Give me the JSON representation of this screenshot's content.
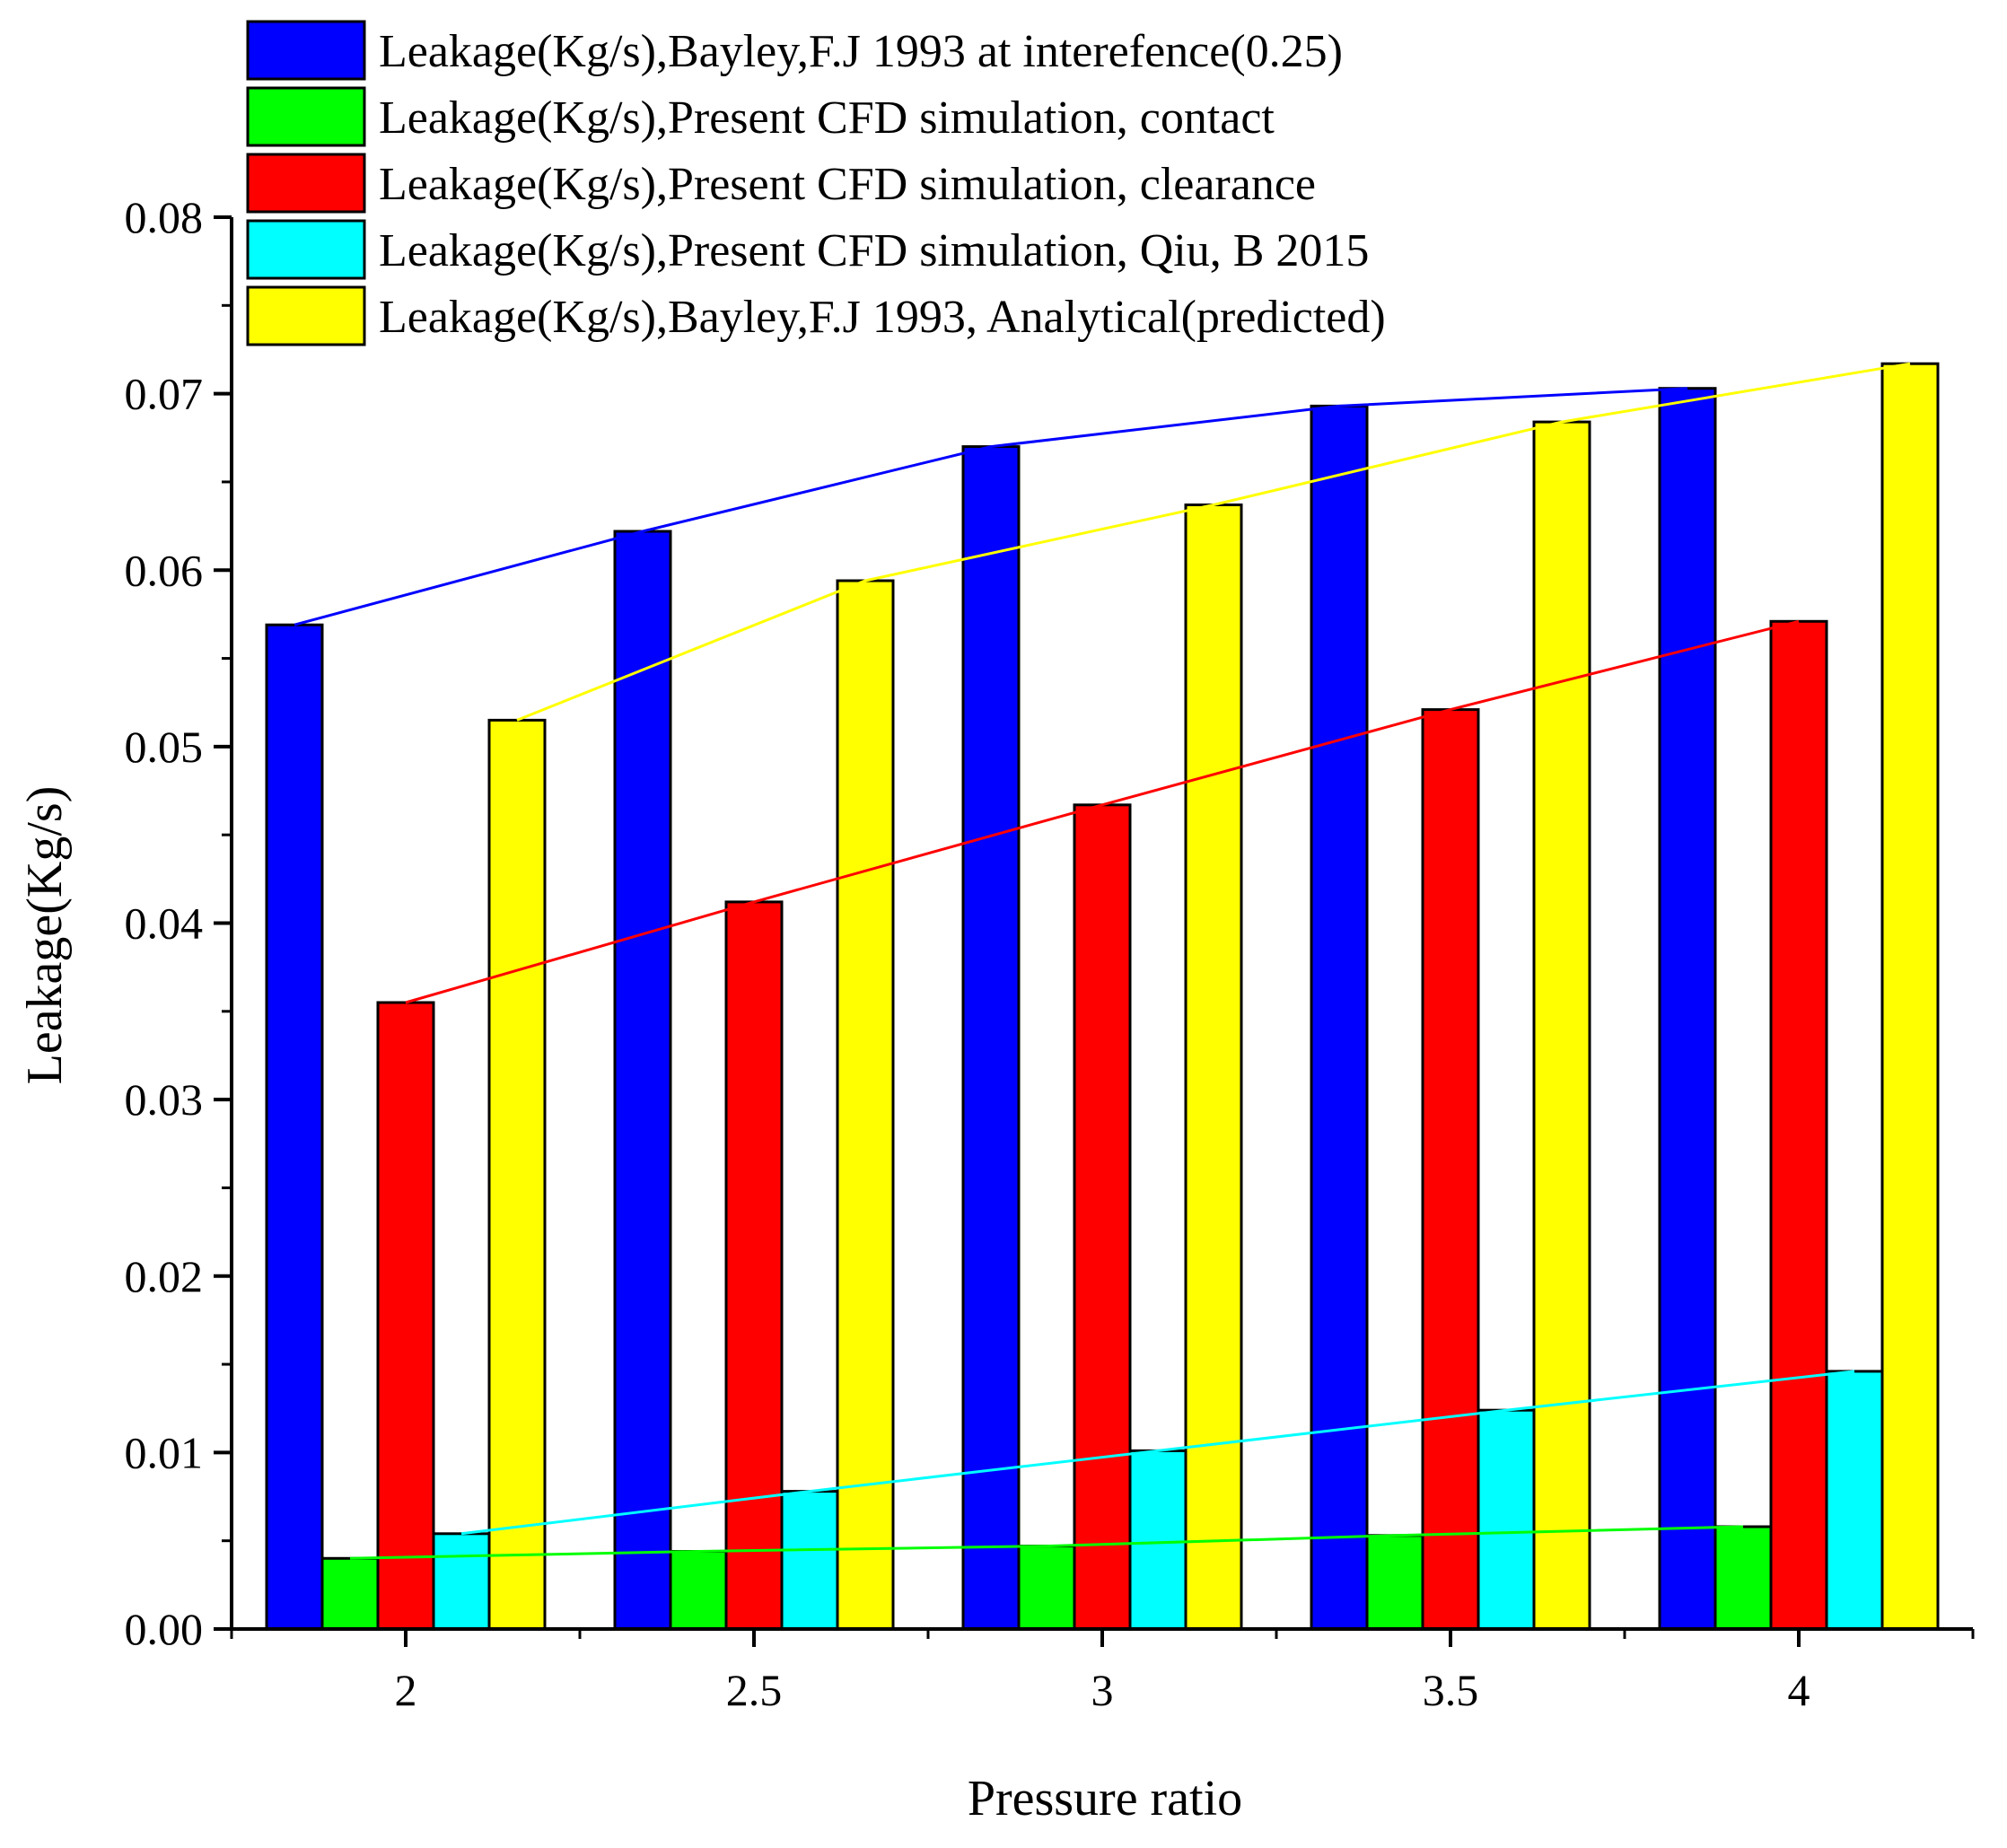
{
  "chart_data": {
    "type": "bar",
    "title": "",
    "xlabel": "Pressure ratio",
    "ylabel": "Leakage(Kg/s)",
    "categories": [
      "2",
      "2.5",
      "3",
      "3.5",
      "4"
    ],
    "x": [
      2,
      2.5,
      3,
      3.5,
      4
    ],
    "xlim": [
      1.75,
      4.25
    ],
    "ylim": [
      0,
      0.08
    ],
    "yticks": [
      0,
      0.01,
      0.02,
      0.03,
      0.04,
      0.05,
      0.06,
      0.07,
      0.08
    ],
    "ytick_labels": [
      "0.00",
      "0.01",
      "0.02",
      "0.03",
      "0.04",
      "0.05",
      "0.06",
      "0.07",
      "0.08"
    ],
    "xtick_labels": [
      "2",
      "2.5",
      "3",
      "3.5",
      "4"
    ],
    "grid": false,
    "legend_position": "top-left",
    "connecting_lines": true,
    "series": [
      {
        "name": "Leakage(Kg/s),Bayley,F.J 1993 at interefence(0.25)",
        "color": "#0000ff",
        "values": [
          0.0569,
          0.0622,
          0.067,
          0.0693,
          0.0703
        ]
      },
      {
        "name": "Leakage(Kg/s),Present CFD simulation, contact",
        "color": "#00ff00",
        "values": [
          0.004,
          0.0044,
          0.0047,
          0.0053,
          0.0058
        ]
      },
      {
        "name": "Leakage(Kg/s),Present CFD simulation, clearance",
        "color": "#ff0000",
        "values": [
          0.0355,
          0.0412,
          0.0467,
          0.0521,
          0.0571
        ]
      },
      {
        "name": "Leakage(Kg/s),Present CFD simulation, Qiu, B 2015",
        "color": "#00ffff",
        "values": [
          0.0054,
          0.0078,
          0.0101,
          0.0124,
          0.0146
        ]
      },
      {
        "name": "Leakage(Kg/s),Bayley,F.J 1993, Analytical(predicted)",
        "color": "#ffff00",
        "values": [
          0.0515,
          0.0594,
          0.0637,
          0.0684,
          0.0717
        ]
      }
    ]
  }
}
